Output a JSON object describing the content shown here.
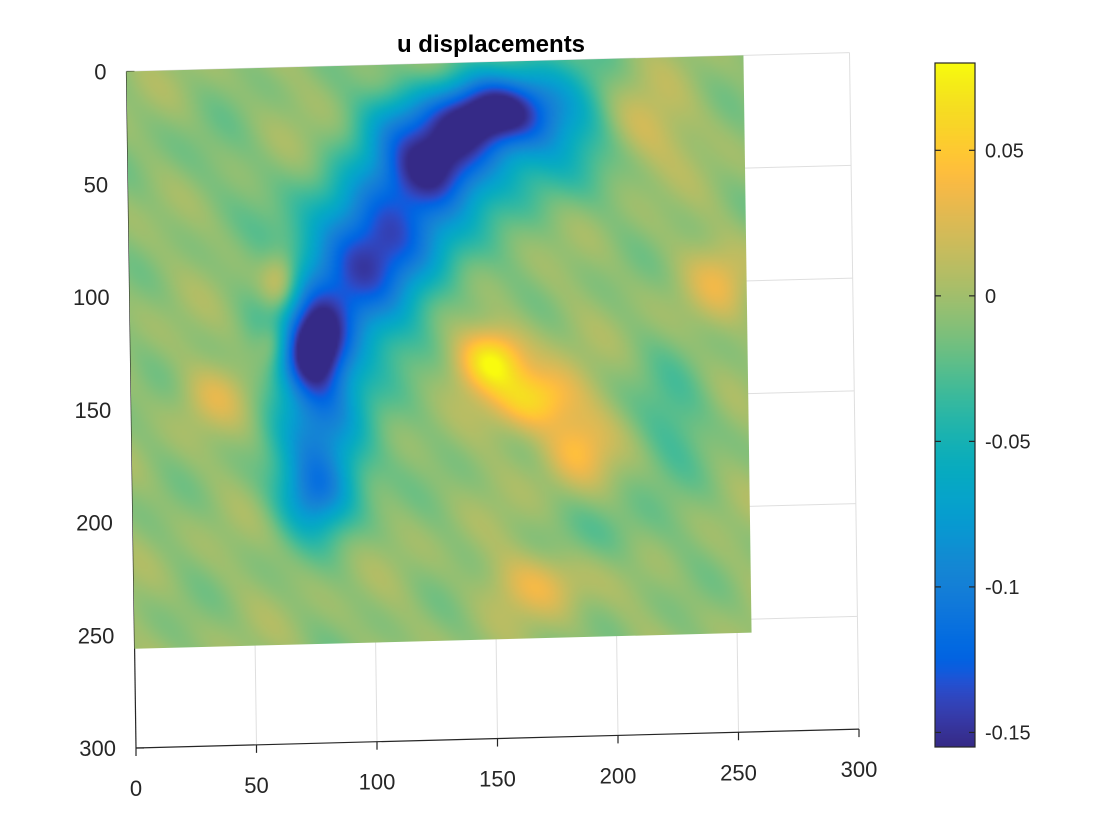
{
  "chart_data": {
    "type": "heatmap",
    "title": "u displacements",
    "xlabel": "",
    "ylabel": "",
    "xlim": [
      0,
      300
    ],
    "ylim": [
      0,
      300
    ],
    "x_ticks": [
      "0",
      "50",
      "100",
      "150",
      "200",
      "250",
      "300"
    ],
    "y_ticks": [
      "0",
      "50",
      "100",
      "150",
      "200",
      "250",
      "300"
    ],
    "y_direction": "reversed",
    "data_extent": {
      "x": [
        0,
        256
      ],
      "y": [
        0,
        256
      ]
    },
    "grid": true,
    "colormap": "parula",
    "colorbar": {
      "range": [
        -0.155,
        0.08
      ],
      "ticks": [
        "0.05",
        "0",
        "-0.05",
        "-0.1",
        "-0.15"
      ],
      "tick_values": [
        0.05,
        0,
        -0.05,
        -0.1,
        -0.15
      ],
      "location": "right"
    },
    "baseline_value": -0.005,
    "features": [
      {
        "x": 150,
        "y": 22,
        "sx": 18,
        "sy": 12,
        "value": -0.145
      },
      {
        "x": 128,
        "y": 45,
        "sx": 16,
        "sy": 14,
        "value": -0.14
      },
      {
        "x": 108,
        "y": 72,
        "sx": 22,
        "sy": 18,
        "value": -0.1
      },
      {
        "x": 92,
        "y": 100,
        "sx": 20,
        "sy": 20,
        "value": -0.1
      },
      {
        "x": 76,
        "y": 125,
        "sx": 10,
        "sy": 14,
        "value": -0.14
      },
      {
        "x": 80,
        "y": 160,
        "sx": 14,
        "sy": 25,
        "value": -0.09
      },
      {
        "x": 75,
        "y": 190,
        "sx": 10,
        "sy": 12,
        "value": -0.07
      },
      {
        "x": 178,
        "y": 30,
        "sx": 18,
        "sy": 20,
        "value": -0.07
      },
      {
        "x": 112,
        "y": 25,
        "sx": 12,
        "sy": 12,
        "value": -0.05
      },
      {
        "x": 150,
        "y": 132,
        "sx": 10,
        "sy": 10,
        "value": 0.075
      },
      {
        "x": 168,
        "y": 150,
        "sx": 12,
        "sy": 10,
        "value": 0.06
      },
      {
        "x": 185,
        "y": 172,
        "sx": 10,
        "sy": 12,
        "value": 0.04
      },
      {
        "x": 63,
        "y": 95,
        "sx": 6,
        "sy": 10,
        "value": 0.05
      },
      {
        "x": 60,
        "y": 122,
        "sx": 5,
        "sy": 8,
        "value": 0.04
      },
      {
        "x": 210,
        "y": 30,
        "sx": 14,
        "sy": 14,
        "value": 0.03
      },
      {
        "x": 245,
        "y": 100,
        "sx": 10,
        "sy": 12,
        "value": 0.025
      },
      {
        "x": 168,
        "y": 232,
        "sx": 14,
        "sy": 10,
        "value": 0.03
      },
      {
        "x": 35,
        "y": 145,
        "sx": 10,
        "sy": 10,
        "value": 0.02
      },
      {
        "x": 225,
        "y": 160,
        "sx": 12,
        "sy": 18,
        "value": -0.03
      },
      {
        "x": 30,
        "y": 40,
        "sx": 14,
        "sy": 14,
        "value": -0.015
      },
      {
        "x": 200,
        "y": 210,
        "sx": 16,
        "sy": 12,
        "value": -0.02
      }
    ]
  }
}
